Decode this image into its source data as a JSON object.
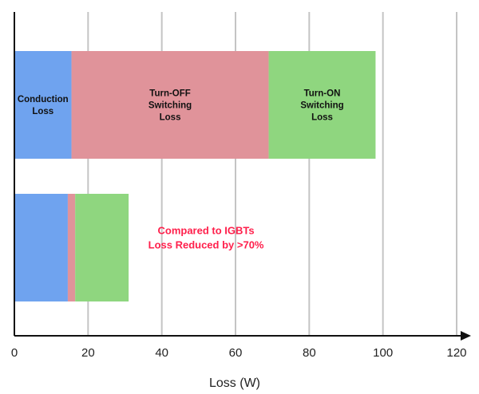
{
  "chart_data": {
    "type": "bar",
    "orientation": "horizontal",
    "stacked": true,
    "categories": [
      "",
      ""
    ],
    "series": [
      {
        "name": "",
        "values": [
          15.5,
          14.5
        ],
        "color": "#6fa3ef"
      },
      {
        "name": "",
        "values": [
          53.5,
          2.0
        ],
        "color": "#e0939a"
      },
      {
        "name": "",
        "values": [
          29.0,
          14.5
        ],
        "color": "#8fd67f"
      }
    ],
    "segment_labels": [
      [
        "Conduction\nLoss",
        "Turn-OFF\nSwitching\nLoss",
        "Turn-ON\nSwitching\nLoss"
      ],
      [
        "",
        "",
        ""
      ]
    ],
    "xlabel": "Loss (W)",
    "xlim": [
      0,
      120
    ],
    "xticks": [
      0,
      20,
      40,
      60,
      80,
      100,
      120
    ],
    "grid": "vertical",
    "legend": "none",
    "annotation": {
      "text": "Compared to IGBTs\nLoss Reduced by >70%",
      "x": 52,
      "category_index": 1,
      "color": "#ff1f4b"
    }
  }
}
